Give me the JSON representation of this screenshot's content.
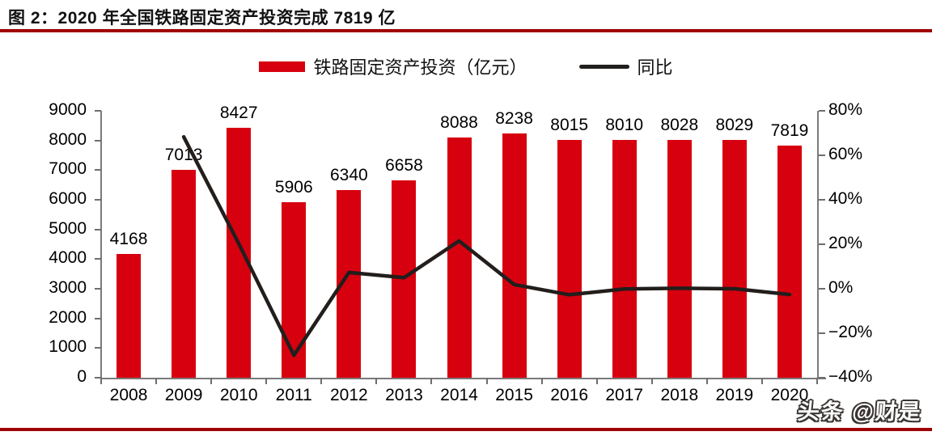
{
  "page": {
    "title": "图 2：2020 年全国铁路固定资产投资完成 7819 亿",
    "watermark": "头条 @财是"
  },
  "colors": {
    "bar": "#d7000f",
    "line": "#221e1c",
    "rule": "#a00000",
    "axis": "#7a7a7a"
  },
  "legend": {
    "bar_label": "铁路固定资产投资（亿元）",
    "line_label": "同比"
  },
  "chart_data": {
    "type": "bar",
    "title": "2020 年全国铁路固定资产投资完成 7819 亿",
    "categories": [
      "2008",
      "2009",
      "2010",
      "2011",
      "2012",
      "2013",
      "2014",
      "2015",
      "2016",
      "2017",
      "2018",
      "2019",
      "2020"
    ],
    "series": [
      {
        "name": "铁路固定资产投资（亿元）",
        "type": "bar",
        "axis": "left",
        "values": [
          4168,
          7013,
          8427,
          5906,
          6340,
          6658,
          8088,
          8238,
          8015,
          8010,
          8028,
          8029,
          7819
        ]
      },
      {
        "name": "同比",
        "type": "line",
        "axis": "right",
        "values_pct": [
          null,
          68.3,
          20.2,
          -29.9,
          7.3,
          5.0,
          21.5,
          1.9,
          -2.7,
          -0.1,
          0.2,
          0.0,
          -2.6
        ]
      }
    ],
    "left_axis": {
      "min": 0,
      "max": 9000,
      "step": 1000,
      "ticks": [
        "9000",
        "8000",
        "7000",
        "6000",
        "5000",
        "4000",
        "3000",
        "2000",
        "1000",
        "0"
      ]
    },
    "right_axis": {
      "min": -40,
      "max": 80,
      "step": 20,
      "ticks": [
        "80%",
        "60%",
        "40%",
        "20%",
        "0%",
        "−20%",
        "−40%"
      ]
    },
    "grid": false,
    "legend_position": "top"
  }
}
